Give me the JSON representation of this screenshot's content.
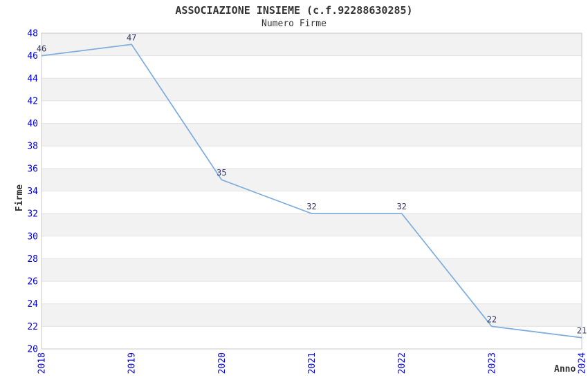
{
  "chart_data": {
    "type": "line",
    "title": "ASSOCIAZIONE INSIEME (c.f.92288630285)",
    "subtitle": "Numero Firme",
    "xlabel": "Anno",
    "ylabel": "Firme",
    "categories": [
      "2018",
      "2019",
      "2020",
      "2021",
      "2022",
      "2023",
      "2024"
    ],
    "values": [
      46,
      47,
      35,
      32,
      32,
      22,
      21
    ],
    "data_labels": [
      "46",
      "47",
      "35",
      "32",
      "32",
      "22",
      "21"
    ],
    "ylim": [
      20,
      48
    ],
    "ytick_step": 2,
    "yticks": [
      20,
      22,
      24,
      26,
      28,
      30,
      32,
      34,
      36,
      38,
      40,
      42,
      44,
      46,
      48
    ],
    "grid": "horizontal-gridlines-with-alternating-bands",
    "legend": "none",
    "xtick_rotation_deg": 90,
    "colors": {
      "line": "#7faede",
      "tick_label": "#0000dd",
      "data_label": "#333366",
      "band": "#f2f2f2",
      "gridline": "#e3e3e3",
      "plot_border": "#c9c9c9",
      "title": "#333333",
      "background": "#ffffff"
    }
  }
}
